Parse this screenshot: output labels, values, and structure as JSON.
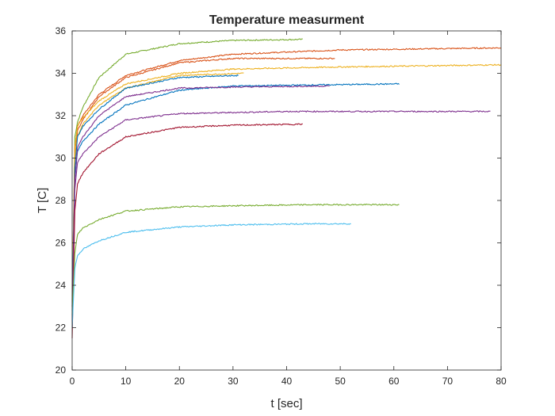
{
  "chart_data": {
    "type": "line",
    "title": "Temperature measurment",
    "xlabel": "t [sec]",
    "ylabel": "T [C]",
    "xlim": [
      0,
      80
    ],
    "ylim": [
      20,
      36
    ],
    "xticks": [
      0,
      10,
      20,
      30,
      40,
      50,
      60,
      70,
      80
    ],
    "yticks": [
      20,
      22,
      24,
      26,
      28,
      30,
      32,
      34,
      36
    ],
    "grid": false,
    "legend": "none",
    "series": [
      {
        "color": "#77AC30",
        "start": 22.0,
        "x": [
          0,
          0.5,
          1,
          2,
          5,
          10,
          20,
          30,
          43
        ],
        "y": [
          22.0,
          31.0,
          31.7,
          32.4,
          33.8,
          34.9,
          35.4,
          35.55,
          35.6
        ]
      },
      {
        "color": "#D95319",
        "start": 23.3,
        "x": [
          0,
          0.5,
          1,
          2,
          5,
          10,
          20,
          30,
          50,
          80
        ],
        "y": [
          23.3,
          30.5,
          31.5,
          32.0,
          33.0,
          33.9,
          34.6,
          34.9,
          35.1,
          35.2
        ]
      },
      {
        "color": "#D95319",
        "start": 23.0,
        "x": [
          0,
          0.5,
          1,
          2,
          5,
          10,
          20,
          30,
          49
        ],
        "y": [
          23.0,
          30.0,
          31.3,
          31.8,
          32.9,
          33.8,
          34.5,
          34.7,
          34.7
        ]
      },
      {
        "color": "#EDB120",
        "start": 23.5,
        "x": [
          0,
          0.5,
          1,
          2,
          5,
          10,
          20,
          30,
          50,
          80
        ],
        "y": [
          23.5,
          30.5,
          31.5,
          31.9,
          32.7,
          33.5,
          34.0,
          34.2,
          34.3,
          34.4
        ]
      },
      {
        "color": "#EDB120",
        "start": 23.2,
        "x": [
          0,
          0.5,
          1,
          2,
          5,
          10,
          20,
          32
        ],
        "y": [
          23.2,
          30.0,
          31.0,
          31.6,
          32.5,
          33.3,
          33.9,
          34.0
        ]
      },
      {
        "color": "#0072BD",
        "start": 23.0,
        "x": [
          0,
          0.5,
          1,
          2,
          5,
          10,
          20,
          31
        ],
        "y": [
          23.0,
          29.5,
          31.0,
          31.5,
          32.3,
          33.3,
          33.8,
          33.9
        ]
      },
      {
        "color": "#0072BD",
        "start": 22.8,
        "x": [
          0,
          0.5,
          1,
          2,
          5,
          10,
          20,
          30,
          45,
          61
        ],
        "y": [
          22.8,
          29.0,
          30.3,
          30.8,
          31.6,
          32.5,
          33.2,
          33.4,
          33.45,
          33.5
        ]
      },
      {
        "color": "#7E2F8E",
        "start": 22.6,
        "x": [
          0,
          0.5,
          1,
          2,
          5,
          10,
          20,
          30,
          48
        ],
        "y": [
          22.6,
          29.0,
          30.5,
          31.0,
          32.0,
          32.9,
          33.3,
          33.35,
          33.4
        ]
      },
      {
        "color": "#7E2F8E",
        "start": 22.3,
        "x": [
          0,
          0.5,
          1,
          2,
          5,
          10,
          20,
          40,
          60,
          78
        ],
        "y": [
          22.3,
          28.5,
          29.8,
          30.2,
          31.0,
          31.8,
          32.1,
          32.2,
          32.2,
          32.2
        ]
      },
      {
        "color": "#A2142F",
        "start": 21.5,
        "x": [
          0,
          0.5,
          1,
          2,
          5,
          10,
          20,
          30,
          43
        ],
        "y": [
          21.5,
          27.5,
          28.8,
          29.3,
          30.2,
          31.0,
          31.45,
          31.55,
          31.6
        ]
      },
      {
        "color": "#77AC30",
        "start": 22.6,
        "x": [
          0,
          0.5,
          1,
          2,
          5,
          10,
          20,
          30,
          45,
          61
        ],
        "y": [
          22.6,
          25.5,
          26.4,
          26.7,
          27.1,
          27.5,
          27.7,
          27.75,
          27.8,
          27.8
        ]
      },
      {
        "color": "#4DBEEE",
        "start": 22.0,
        "x": [
          0,
          0.5,
          1,
          2,
          5,
          10,
          20,
          30,
          45,
          52
        ],
        "y": [
          22.0,
          24.8,
          25.4,
          25.7,
          26.1,
          26.5,
          26.75,
          26.85,
          26.9,
          26.9
        ]
      }
    ]
  }
}
